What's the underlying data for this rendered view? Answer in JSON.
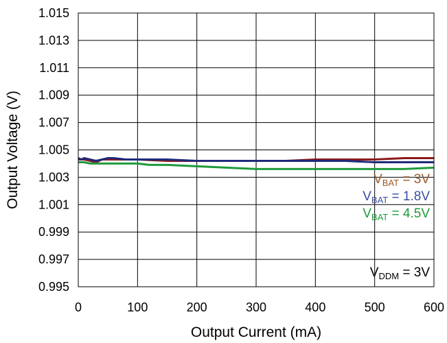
{
  "chart_data": {
    "type": "line",
    "title": "",
    "xlabel": "Output Current (mA)",
    "ylabel": "Output Voltage (V)",
    "xlim": [
      0,
      600
    ],
    "ylim": [
      0.995,
      1.015
    ],
    "x_ticks": [
      0,
      100,
      200,
      300,
      400,
      500,
      600
    ],
    "y_ticks": [
      0.995,
      0.997,
      0.999,
      1.001,
      1.003,
      1.005,
      1.007,
      1.009,
      1.011,
      1.013,
      1.015
    ],
    "y_tick_labels": [
      "0.995",
      "0.997",
      "0.999",
      "1.001",
      "1.003",
      "1.005",
      "1.007",
      "1.009",
      "1.011",
      "1.013",
      "1.015"
    ],
    "grid": true,
    "legend": {
      "placement": "right-middle",
      "entries": [
        {
          "prefix": "V",
          "sub": "BAT",
          "suffix": " = 3V",
          "color": "#9c5a2a"
        },
        {
          "prefix": "V",
          "sub": "BAT",
          "suffix": " = 1.8V",
          "color": "#3a4f9e"
        },
        {
          "prefix": "V",
          "sub": "BAT",
          "suffix": " = 4.5V",
          "color": "#1f9a3c"
        }
      ]
    },
    "annotation": {
      "prefix": "V",
      "sub": "DDM",
      "suffix": " = 3V"
    },
    "series": [
      {
        "color": "#8b1a1a",
        "x": [
          0,
          10,
          20,
          30,
          40,
          60,
          80,
          100,
          150,
          200,
          250,
          300,
          350,
          400,
          450,
          500,
          550,
          600
        ],
        "y": [
          1.0043,
          1.0043,
          1.0042,
          1.0041,
          1.0043,
          1.0043,
          1.0043,
          1.0043,
          1.0042,
          1.0042,
          1.0042,
          1.0042,
          1.0042,
          1.0043,
          1.0043,
          1.0043,
          1.0044,
          1.0044
        ]
      },
      {
        "color": "#1f2a7a",
        "x": [
          0,
          5,
          10,
          20,
          30,
          40,
          50,
          60,
          80,
          100,
          150,
          200,
          250,
          300,
          350,
          400,
          450,
          500,
          550,
          600
        ],
        "y": [
          1.0044,
          1.0043,
          1.0044,
          1.0043,
          1.0042,
          1.0043,
          1.0044,
          1.0044,
          1.0043,
          1.0043,
          1.0043,
          1.0042,
          1.0042,
          1.0042,
          1.0042,
          1.0042,
          1.0042,
          1.0041,
          1.0041,
          1.0041
        ]
      },
      {
        "color": "#1f9a3c",
        "x": [
          0,
          10,
          20,
          30,
          40,
          60,
          80,
          100,
          120,
          150,
          200,
          250,
          300,
          350,
          400,
          450,
          500,
          550,
          600
        ],
        "y": [
          1.0041,
          1.0041,
          1.004,
          1.004,
          1.004,
          1.004,
          1.004,
          1.004,
          1.0039,
          1.0039,
          1.0038,
          1.0037,
          1.0036,
          1.0036,
          1.0036,
          1.0036,
          1.0036,
          1.0036,
          1.0037
        ]
      }
    ]
  }
}
